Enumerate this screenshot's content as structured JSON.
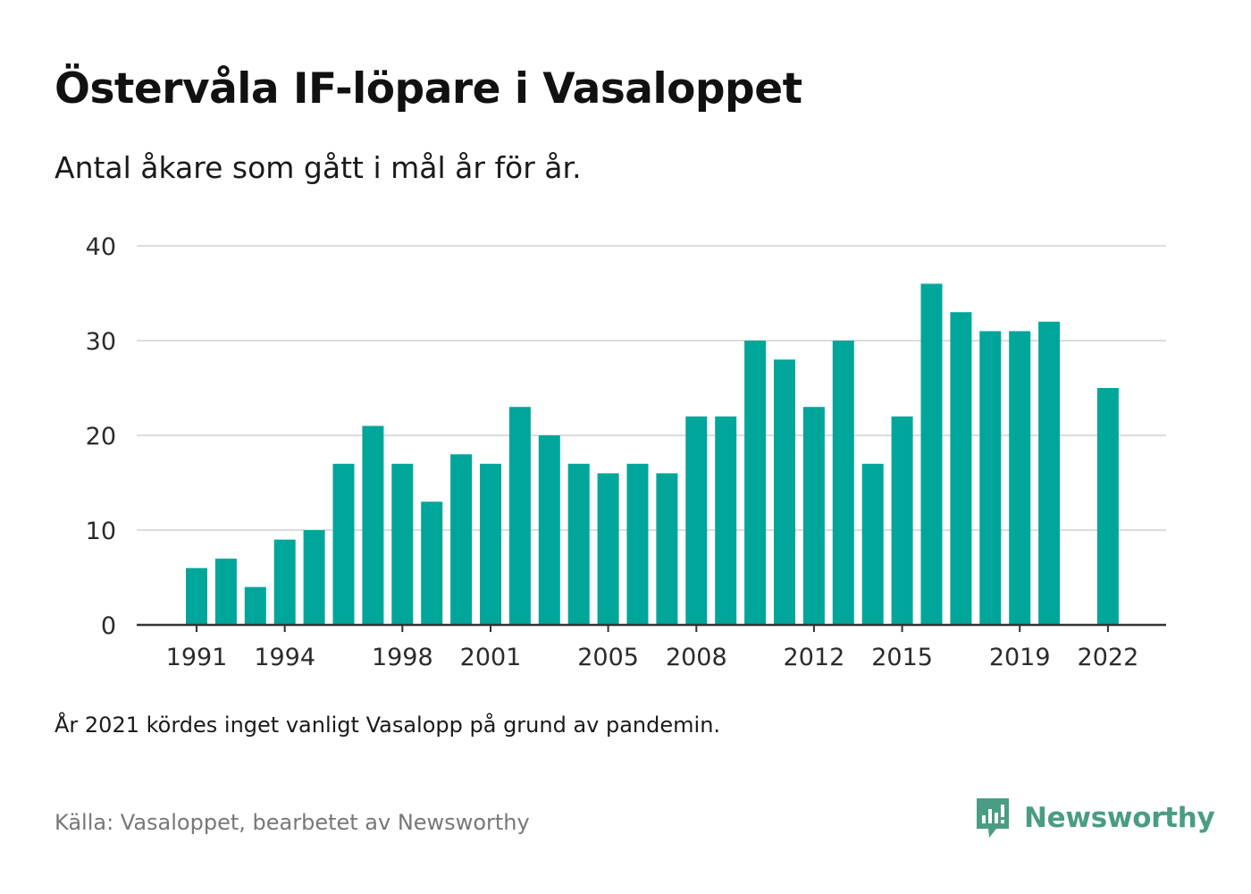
{
  "header": {
    "title": "Östervåla IF-löpare i Vasaloppet",
    "subtitle": "Antal åkare som gått i mål år för år."
  },
  "footer": {
    "note": "År 2021 kördes inget vanligt Vasalopp på grund av pandemin.",
    "source": "Källa: Vasaloppet, bearbetet av Newsworthy",
    "brand": "Newsworthy"
  },
  "colors": {
    "bar": "#00a69a",
    "grid": "#dddddd",
    "axis": "#333333",
    "brand": "#4a9c84"
  },
  "icons": {
    "logo": "newsworthy-logo-icon"
  },
  "chart_data": {
    "type": "bar",
    "categories": [
      "1991",
      "1992",
      "1993",
      "1994",
      "1995",
      "1996",
      "1997",
      "1998",
      "1999",
      "2000",
      "2001",
      "2002",
      "2003",
      "2004",
      "2005",
      "2006",
      "2007",
      "2008",
      "2009",
      "2010",
      "2011",
      "2012",
      "2013",
      "2014",
      "2015",
      "2016",
      "2017",
      "2018",
      "2019",
      "2020",
      "2021",
      "2022"
    ],
    "values": [
      6,
      7,
      4,
      9,
      10,
      17,
      21,
      17,
      13,
      18,
      17,
      23,
      20,
      17,
      16,
      17,
      16,
      22,
      22,
      30,
      28,
      23,
      30,
      17,
      22,
      36,
      33,
      31,
      31,
      32,
      null,
      25
    ],
    "x_tick_labels": [
      "1991",
      "1994",
      "1998",
      "2001",
      "2005",
      "2008",
      "2012",
      "2015",
      "2019",
      "2022"
    ],
    "y_ticks": [
      0,
      10,
      20,
      30,
      40
    ],
    "ylim": [
      0,
      40
    ],
    "xlabel": "",
    "ylabel": "",
    "grid": true,
    "legend": "none"
  }
}
